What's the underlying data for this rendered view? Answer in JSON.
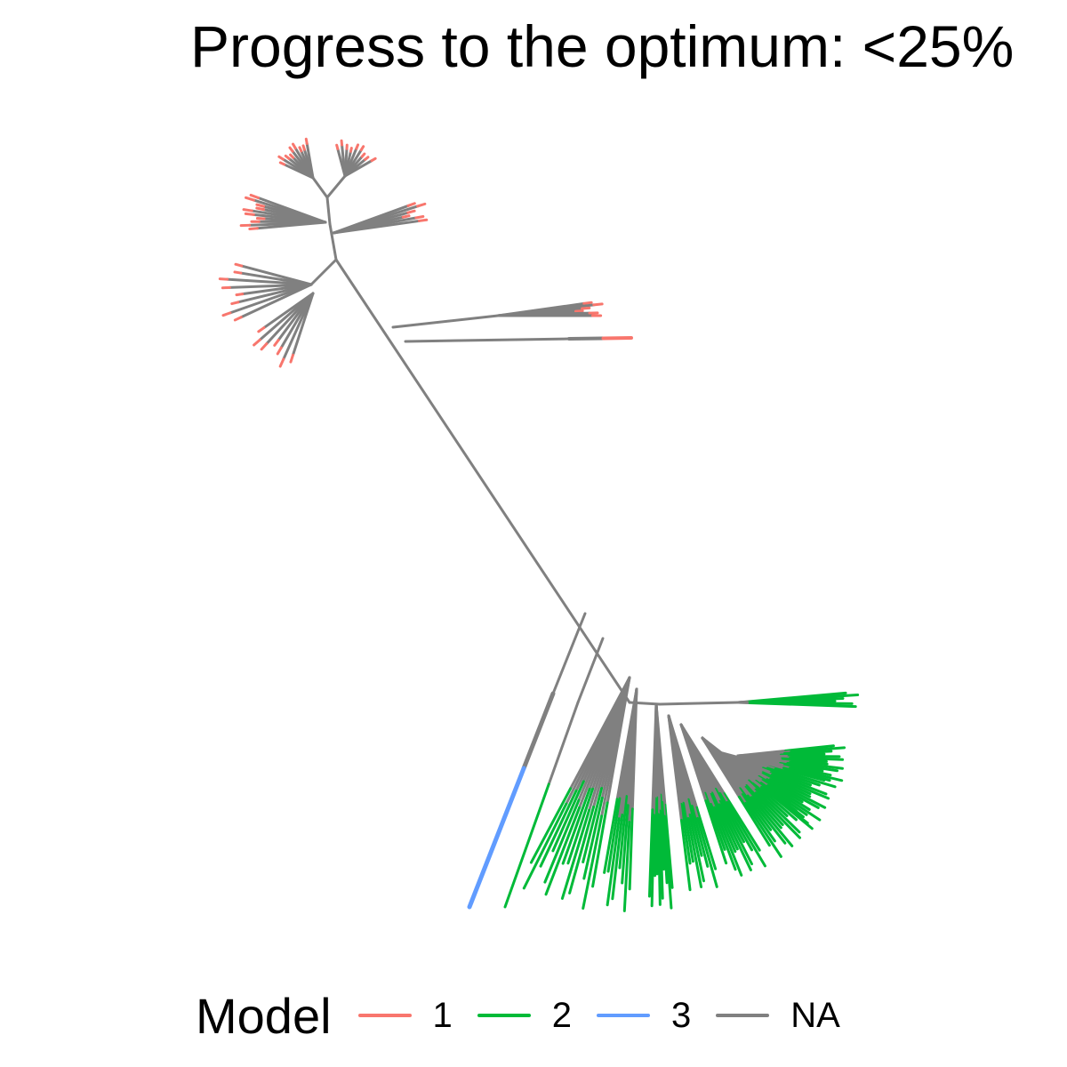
{
  "title": "Progress to the optimum: <25%",
  "legend": {
    "title": "Model",
    "items": [
      {
        "label": "1",
        "color": "#F8766D"
      },
      {
        "label": "2",
        "color": "#00BA38"
      },
      {
        "label": "3",
        "color": "#619CFF"
      },
      {
        "label": "NA",
        "color": "#808080"
      }
    ]
  }
}
